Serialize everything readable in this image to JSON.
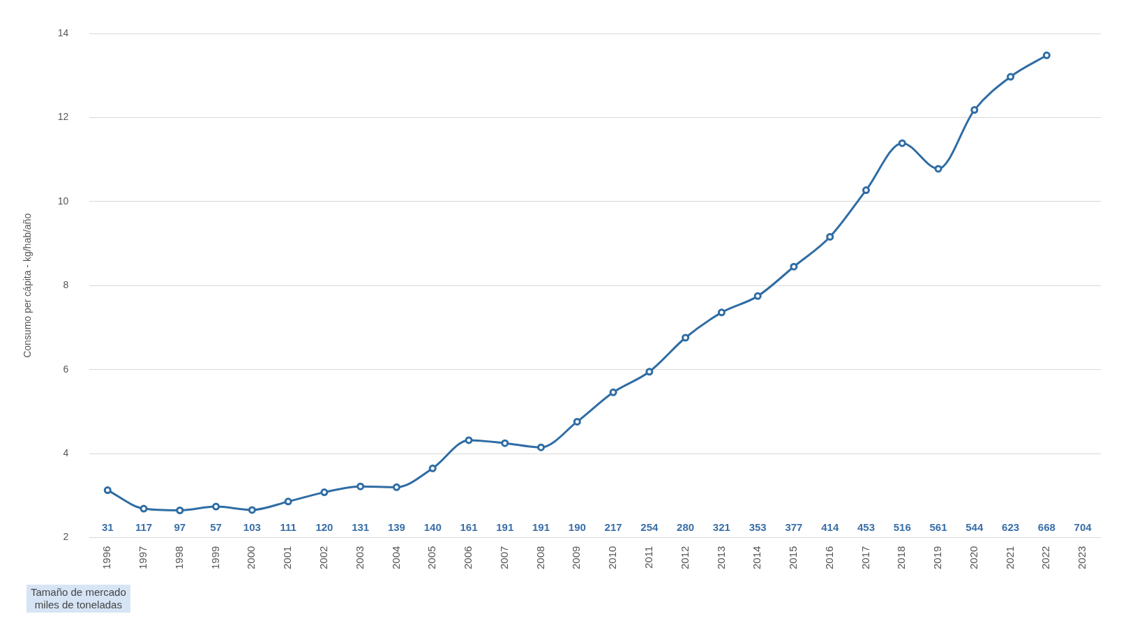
{
  "chart_data": {
    "type": "line",
    "ylabel": "Consumo per cápita - kg/hab/año",
    "categories": [
      "1996",
      "1997",
      "1998",
      "1999",
      "2000",
      "2001",
      "2002",
      "2003",
      "2004",
      "2005",
      "2006",
      "2007",
      "2008",
      "2009",
      "2010",
      "2011",
      "2012",
      "2013",
      "2014",
      "2015",
      "2016",
      "2017",
      "2018",
      "2019",
      "2020",
      "2021",
      "2022",
      "2023"
    ],
    "series": [
      {
        "color": "#2e6ca4",
        "values": [
          3.13,
          2.69,
          2.65,
          2.74,
          2.66,
          2.86,
          3.08,
          3.22,
          3.2,
          3.65,
          4.32,
          4.25,
          4.15,
          4.76,
          5.46,
          5.95,
          6.76,
          7.36,
          7.75,
          8.45,
          9.16,
          10.27,
          11.39,
          10.78,
          12.18,
          12.97,
          13.48,
          null
        ]
      }
    ],
    "ylim": [
      2,
      14
    ],
    "yticks": [
      2,
      4,
      6,
      8,
      10,
      12,
      14
    ],
    "grid": "y",
    "legend": false,
    "marker": "circle",
    "line_style": "solid",
    "annotations": [
      "31",
      "117",
      "97",
      "57",
      "103",
      "111",
      "120",
      "131",
      "139",
      "140",
      "161",
      "191",
      "191",
      "190",
      "217",
      "254",
      "280",
      "321",
      "353",
      "377",
      "414",
      "453",
      "516",
      "561",
      "544",
      "623",
      "668",
      "704",
      "Tamaño de mercado\nmiles de toneladas"
    ]
  }
}
